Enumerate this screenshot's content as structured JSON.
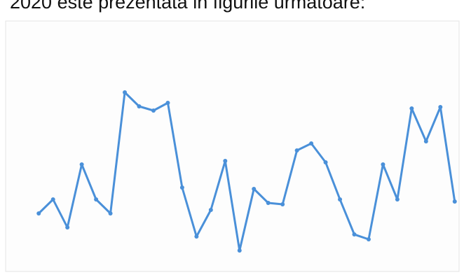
{
  "heading": "2020 este prezentata in figurile urmatoare:",
  "chart_data": {
    "type": "line",
    "x": [
      1,
      2,
      3,
      4,
      5,
      6,
      7,
      8,
      9,
      10,
      11,
      12,
      13,
      14,
      15,
      16,
      17,
      18,
      19,
      20,
      21,
      22,
      23,
      24,
      25,
      26,
      27,
      28,
      29,
      30
    ],
    "series": [
      {
        "color": "#4a90d9",
        "values": [
          65,
          85,
          45,
          135,
          85,
          65,
          238,
          218,
          212,
          223,
          102,
          32,
          70,
          140,
          12,
          100,
          80,
          78,
          155,
          165,
          138,
          85,
          35,
          28,
          135,
          85,
          215,
          168,
          217,
          82
        ]
      }
    ],
    "xlim": [
      0.5,
      30.5
    ],
    "ylim": [
      0,
      270
    ]
  }
}
